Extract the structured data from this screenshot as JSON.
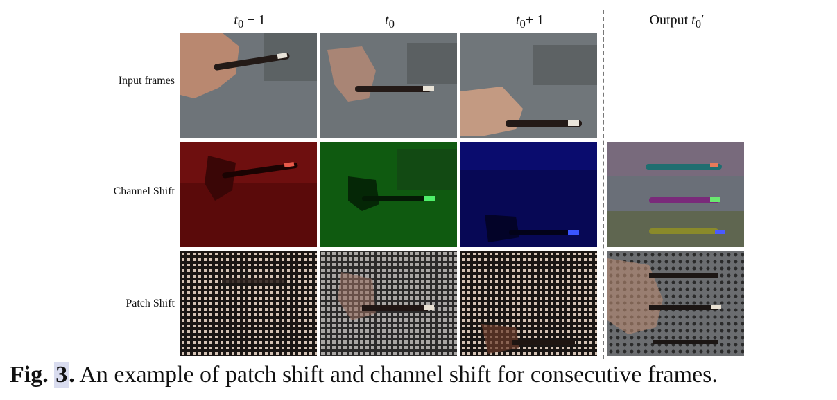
{
  "columns": [
    {
      "base": "t",
      "sub": "0",
      "tail": " − 1"
    },
    {
      "base": "t",
      "sub": "0",
      "tail": ""
    },
    {
      "base": "t",
      "sub": "0",
      "tail": "+ 1"
    },
    {
      "prefix": "Output ",
      "base": "t",
      "sub": "0",
      "tail": "′"
    }
  ],
  "rows": [
    "Input frames",
    "Channel Shift",
    "Patch Shift"
  ],
  "caption": {
    "label": "Fig.",
    "number": "3",
    "dot": ".",
    "text": " An example of patch shift and channel shift for consecutive frames."
  }
}
